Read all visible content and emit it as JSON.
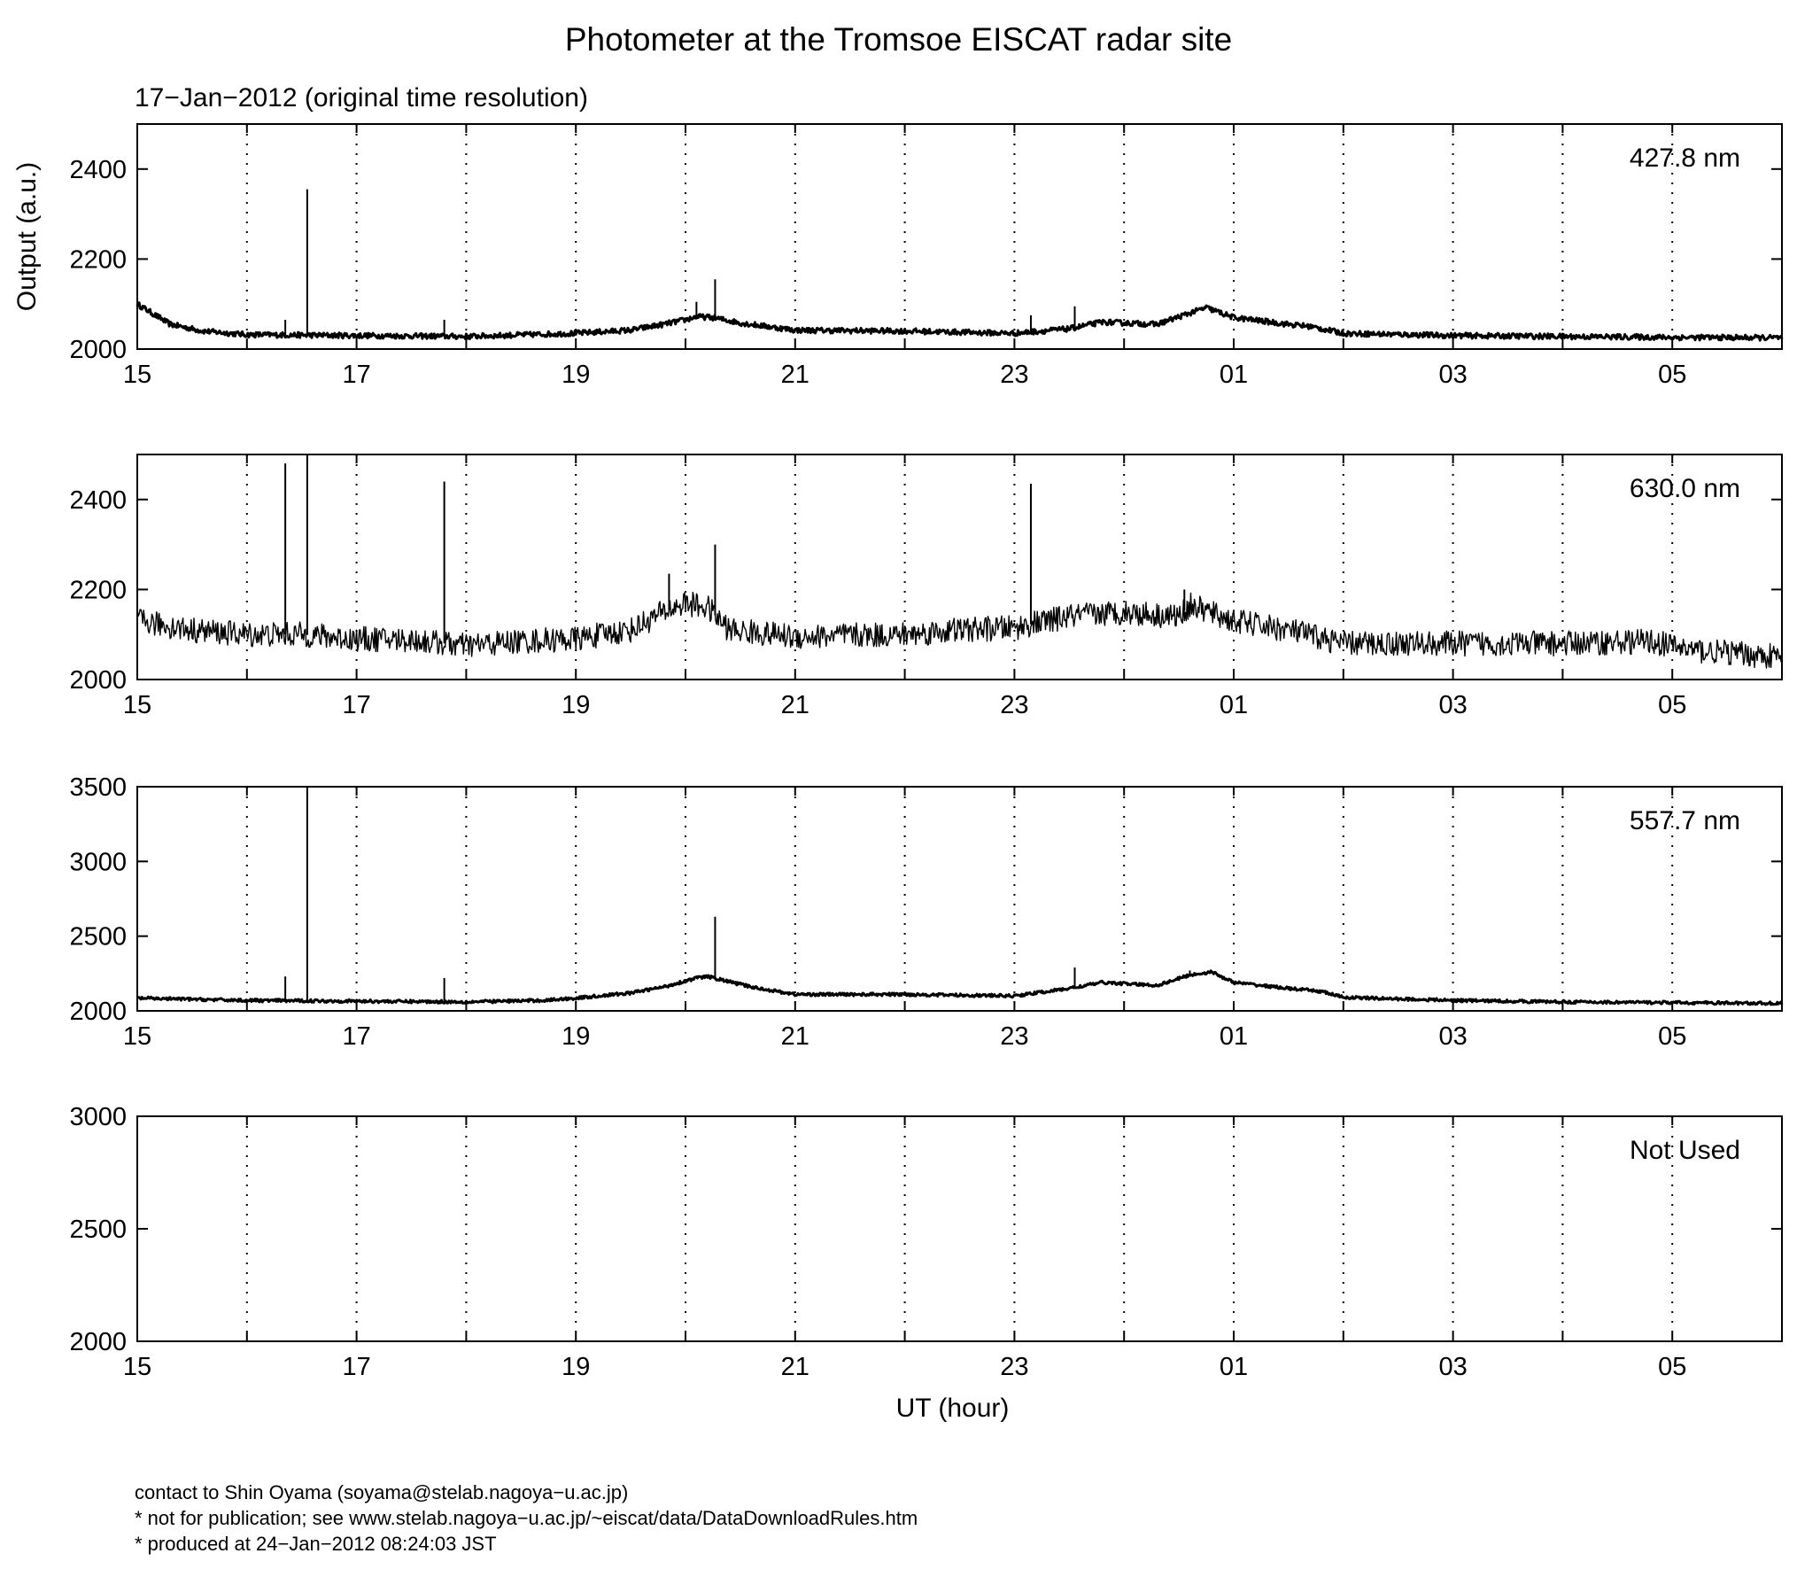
{
  "chart_data": {
    "type": "line",
    "title": "Photometer at the Tromsoe EISCAT radar site",
    "subtitle": "17−Jan−2012 (original time resolution)",
    "xlabel": "UT (hour)",
    "ylabel": "Output (a.u.)",
    "x_ticks": [
      "15",
      "17",
      "19",
      "21",
      "23",
      "01",
      "03",
      "05"
    ],
    "x_range_hours": [
      15,
      30
    ],
    "grid": "vertical dotted lines every hour",
    "panels": [
      {
        "label": "427.8 nm",
        "ylim": [
          2000,
          2500
        ],
        "yticks": [
          "2000",
          "2200",
          "2400"
        ],
        "ytick_values": [
          2000,
          2200,
          2400
        ],
        "noise": 6,
        "x": [
          15,
          15.3,
          15.6,
          16,
          17,
          18,
          19,
          19.5,
          19.8,
          20.0,
          20.1,
          20.25,
          20.5,
          21,
          22,
          23,
          23.5,
          23.8,
          24.3,
          24.6,
          24.75,
          25.0,
          25.5,
          25.7,
          26,
          27,
          28,
          29,
          30
        ],
        "y": [
          2100,
          2055,
          2040,
          2032,
          2030,
          2028,
          2035,
          2042,
          2055,
          2065,
          2072,
          2070,
          2058,
          2042,
          2040,
          2035,
          2045,
          2060,
          2055,
          2080,
          2092,
          2070,
          2055,
          2050,
          2035,
          2030,
          2028,
          2026,
          2025
        ],
        "spikes": [
          [
            16.35,
            2065
          ],
          [
            16.55,
            2355
          ],
          [
            17.8,
            2065
          ],
          [
            20.1,
            2105
          ],
          [
            20.27,
            2155
          ],
          [
            23.15,
            2075
          ],
          [
            23.55,
            2095
          ]
        ]
      },
      {
        "label": "630.0 nm",
        "ylim": [
          2000,
          2500
        ],
        "yticks": [
          "2000",
          "2200",
          "2400"
        ],
        "ytick_values": [
          2000,
          2200,
          2400
        ],
        "noise": 28,
        "x": [
          15,
          15.5,
          16,
          16.5,
          17,
          17.5,
          18,
          18.5,
          19,
          19.5,
          19.8,
          20.0,
          20.2,
          20.4,
          21,
          22,
          22.5,
          23,
          23.5,
          24,
          24.5,
          24.6,
          25,
          25.5,
          26,
          27,
          28,
          28.8,
          29.2,
          30
        ],
        "y": [
          2130,
          2110,
          2100,
          2100,
          2090,
          2088,
          2075,
          2085,
          2090,
          2110,
          2150,
          2170,
          2160,
          2110,
          2095,
          2100,
          2110,
          2115,
          2140,
          2150,
          2140,
          2165,
          2130,
          2110,
          2080,
          2080,
          2080,
          2085,
          2065,
          2050
        ],
        "spikes": [
          [
            16.35,
            2480
          ],
          [
            16.55,
            2500
          ],
          [
            17.8,
            2440
          ],
          [
            19.85,
            2235
          ],
          [
            20.27,
            2300
          ],
          [
            23.15,
            2435
          ],
          [
            24.55,
            2200
          ]
        ]
      },
      {
        "label": "557.7 nm",
        "ylim": [
          2000,
          3500
        ],
        "yticks": [
          "2000",
          "2500",
          "3000",
          "3500"
        ],
        "ytick_values": [
          2000,
          2500,
          3000,
          3500
        ],
        "noise": 10,
        "x": [
          15,
          16,
          17,
          18,
          18.7,
          19,
          19.5,
          19.8,
          20.0,
          20.1,
          20.2,
          20.6,
          21,
          22,
          23,
          23.5,
          23.8,
          24.3,
          24.6,
          24.8,
          25.0,
          25.5,
          25.8,
          26,
          27,
          28,
          29,
          30
        ],
        "y": [
          2085,
          2070,
          2065,
          2060,
          2070,
          2085,
          2120,
          2160,
          2200,
          2220,
          2230,
          2160,
          2110,
          2110,
          2100,
          2150,
          2190,
          2170,
          2240,
          2260,
          2190,
          2150,
          2130,
          2090,
          2070,
          2060,
          2055,
          2050
        ],
        "spikes": [
          [
            16.35,
            2230
          ],
          [
            16.55,
            3500
          ],
          [
            17.8,
            2220
          ],
          [
            20.27,
            2630
          ],
          [
            23.55,
            2290
          ],
          [
            24.6,
            2270
          ]
        ]
      },
      {
        "label": "Not Used",
        "ylim": [
          2000,
          3000
        ],
        "yticks": [
          "2000",
          "2500",
          "3000"
        ],
        "ytick_values": [
          2000,
          2500,
          3000
        ],
        "noise": 0,
        "x": [],
        "y": [],
        "spikes": []
      }
    ]
  },
  "footer": {
    "line1": "contact to Shin Oyama (soyama@stelab.nagoya−u.ac.jp)",
    "line2": "* not for publication; see www.stelab.nagoya−u.ac.jp/~eiscat/data/DataDownloadRules.htm",
    "line3": "* produced at 24−Jan−2012 08:24:03 JST"
  }
}
